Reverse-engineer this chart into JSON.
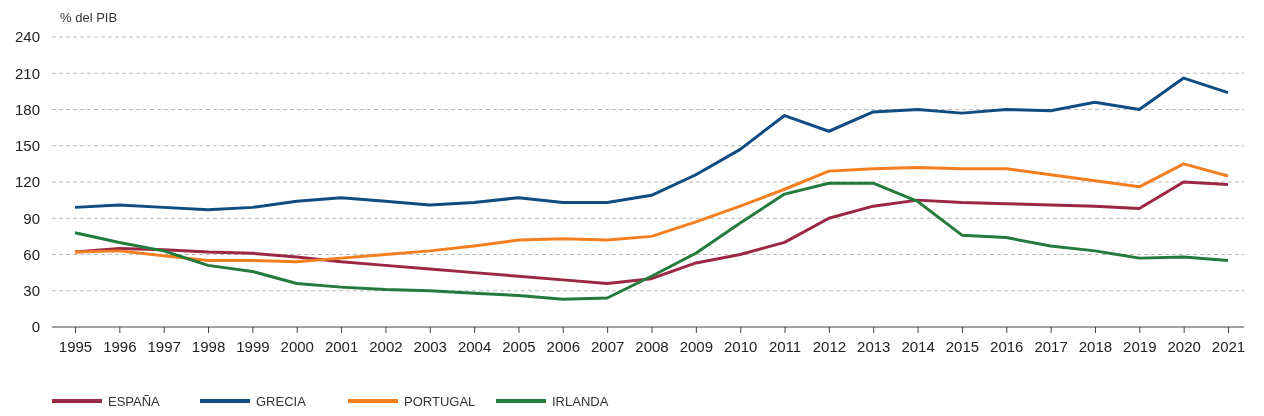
{
  "chart_data": {
    "type": "line",
    "ylabel": "% del PIB",
    "categories": [
      "1995",
      "1996",
      "1997",
      "1998",
      "1999",
      "2000",
      "2001",
      "2002",
      "2003",
      "2004",
      "2005",
      "2006",
      "2007",
      "2008",
      "2009",
      "2010",
      "2011",
      "2012",
      "2013",
      "2014",
      "2015",
      "2016",
      "2017",
      "2018",
      "2019",
      "2020",
      "2021"
    ],
    "series": [
      {
        "name": "ESPAÑA",
        "color": "#9b2743",
        "values": [
          62,
          65,
          64,
          62,
          61,
          58,
          54,
          51,
          48,
          45,
          42,
          39,
          36,
          40,
          53,
          60,
          70,
          90,
          100,
          105,
          103,
          102,
          101,
          100,
          98,
          120,
          118
        ]
      },
      {
        "name": "GRECIA",
        "color": "#0f4c81",
        "values": [
          99,
          101,
          99,
          97,
          99,
          104,
          107,
          104,
          101,
          103,
          107,
          103,
          103,
          109,
          126,
          147,
          175,
          162,
          178,
          180,
          177,
          180,
          179,
          186,
          180,
          206,
          194
        ]
      },
      {
        "name": "PORTUGAL",
        "color": "#f57f20",
        "values": [
          62,
          63,
          59,
          55,
          55,
          54,
          57,
          60,
          63,
          67,
          72,
          73,
          72,
          75,
          87,
          100,
          114,
          129,
          131,
          132,
          131,
          131,
          126,
          121,
          116,
          135,
          125
        ]
      },
      {
        "name": "IRLANDA",
        "color": "#237a3b",
        "values": [
          78,
          70,
          63,
          51,
          46,
          36,
          33,
          31,
          30,
          28,
          26,
          23,
          24,
          42,
          61,
          86,
          110,
          119,
          119,
          104,
          76,
          74,
          67,
          63,
          57,
          58,
          55
        ]
      }
    ],
    "ylim": [
      0,
      240
    ],
    "yticks": [
      0,
      30,
      60,
      90,
      120,
      150,
      180,
      210,
      240
    ],
    "grid": "y",
    "legend": "bottom left",
    "marker": "none",
    "line_style": "solid"
  }
}
